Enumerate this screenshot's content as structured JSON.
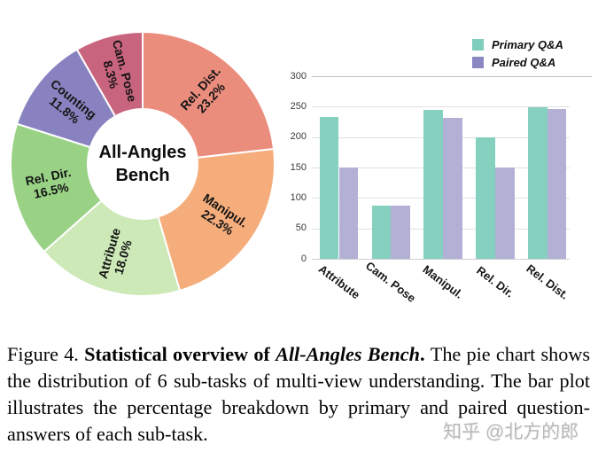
{
  "ui": {
    "watermark": "知乎 @北方的郎",
    "caption": {
      "prefix": "Figure 4. ",
      "bold": "Statistical overview of ",
      "bold_italic": "All-Angles Bench",
      "bold_period": ". ",
      "rest": "The pie chart shows the distribution of 6 sub-tasks of multi-view understanding. The bar plot illustrates the percentage breakdown by primary and paired question-answers of each sub-task."
    }
  },
  "colors": {
    "background": "#ffffff",
    "gridline": "#dee0e3",
    "gridline_top": "#c2c2c6",
    "axis_tick_text": "#3a3a3a",
    "caption_text": "#050505",
    "watermark_text": "#b9b9b9"
  },
  "chart_data": [
    {
      "type": "pie",
      "title": "All-Angles Bench",
      "donut": true,
      "start_angle_deg": 0,
      "direction": "clockwise",
      "unit": "%",
      "labels": [
        "Rel. Dist.",
        "Manipul.",
        "Attribute",
        "Rel. Dir.",
        "Counting",
        "Cam. Pose"
      ],
      "values": [
        23.2,
        22.3,
        18.0,
        16.5,
        11.8,
        8.3
      ],
      "colors": [
        "#EB8D7D",
        "#F5AD7C",
        "#CDE9B8",
        "#99D285",
        "#8883C0",
        "#C9647E"
      ]
    },
    {
      "type": "bar",
      "categories": [
        "Attribute",
        "Cam. Pose",
        "Manipul.",
        "Rel. Dir.",
        "Rel. Dist."
      ],
      "series": [
        {
          "name": "Primary Q&A",
          "color": "#85D0BF",
          "legend_color": "#7FCDBC",
          "values": [
            233,
            88,
            245,
            200,
            249
          ]
        },
        {
          "name": "Paired Q&A",
          "color": "#B3B0D6",
          "legend_color": "#8B87C3",
          "values": [
            150,
            88,
            231,
            150,
            246
          ]
        }
      ],
      "ylim": [
        0,
        300
      ],
      "ytick_step": 50,
      "grid": true,
      "legend_position": "top-right",
      "x_label_rotation_deg": 37
    }
  ]
}
